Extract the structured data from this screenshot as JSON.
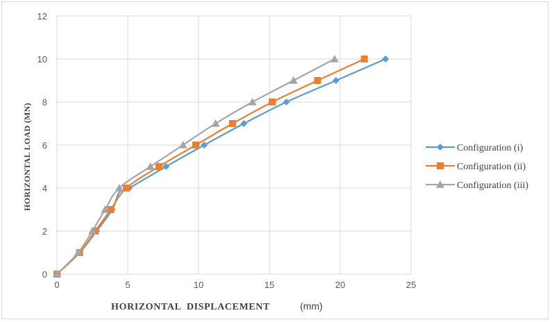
{
  "chart_data": {
    "type": "line",
    "title": "",
    "xlabel": "HORIZONTAL  DISPLACEMENT",
    "xlabel_unit": "(mm)",
    "ylabel": "HORIZONTAL  LOAD (MN)",
    "xlim": [
      0,
      25
    ],
    "ylim": [
      0,
      12
    ],
    "x_ticks": [
      "0",
      "5",
      "10",
      "15",
      "20",
      "25"
    ],
    "y_ticks": [
      "0",
      "2",
      "4",
      "6",
      "8",
      "10",
      "12"
    ],
    "grid": true,
    "legend_position": "right",
    "series": [
      {
        "name": "Configuration (i)",
        "color": "#5b9bd5",
        "marker": "diamond",
        "points": [
          [
            0,
            0
          ],
          [
            1.6,
            1
          ],
          [
            2.8,
            2
          ],
          [
            3.9,
            3
          ],
          [
            4.4,
            3.8
          ],
          [
            5.1,
            4
          ],
          [
            7.7,
            5
          ],
          [
            10.4,
            6
          ],
          [
            13.2,
            7
          ],
          [
            16.2,
            8
          ],
          [
            19.7,
            9
          ],
          [
            23.2,
            10
          ]
        ]
      },
      {
        "name": "Configuration (ii)",
        "color": "#ed7d31",
        "marker": "square",
        "points": [
          [
            0,
            0
          ],
          [
            1.6,
            1
          ],
          [
            2.7,
            2
          ],
          [
            3.8,
            3
          ],
          [
            4.9,
            4
          ],
          [
            7.2,
            5
          ],
          [
            9.8,
            6
          ],
          [
            12.4,
            7
          ],
          [
            15.2,
            8
          ],
          [
            18.4,
            9
          ],
          [
            21.7,
            10
          ]
        ]
      },
      {
        "name": "Configuration (iii)",
        "color": "#a5a5a5",
        "marker": "triangle",
        "points": [
          [
            0,
            0
          ],
          [
            1.5,
            1
          ],
          [
            2.5,
            2
          ],
          [
            3.4,
            3
          ],
          [
            4.4,
            4
          ],
          [
            6.6,
            5
          ],
          [
            8.9,
            6
          ],
          [
            11.2,
            7
          ],
          [
            13.8,
            8
          ],
          [
            16.7,
            9
          ],
          [
            19.6,
            10
          ]
        ]
      }
    ]
  }
}
